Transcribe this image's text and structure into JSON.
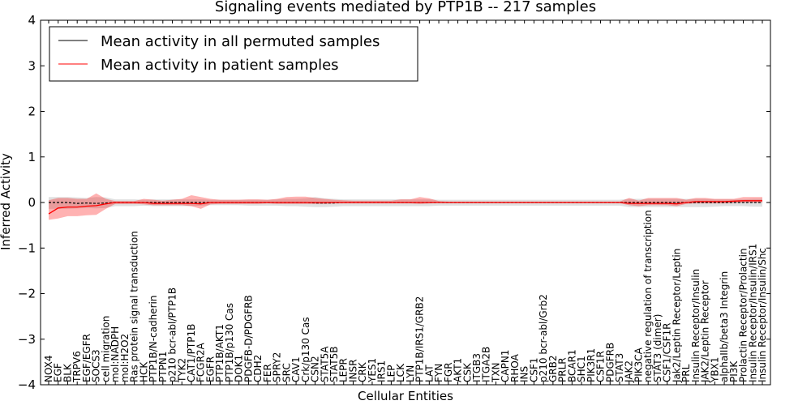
{
  "chart_data": {
    "type": "line",
    "title": "Signaling events mediated by PTP1B -- 217 samples",
    "xlabel": "Cellular Entities",
    "ylabel": "Inferred Activity",
    "ylim": [
      -4,
      4
    ],
    "yticks": [
      -4,
      -3,
      -2,
      -1,
      0,
      1,
      2,
      3,
      4
    ],
    "ytick_labels": [
      "−4",
      "−3",
      "−2",
      "−1",
      "0",
      "1",
      "2",
      "3",
      "4"
    ],
    "legend_position": "top-left",
    "categories": [
      "NOX4",
      "EGF",
      "BLK",
      "TRPV6",
      "EGF/EGFR",
      "SOCS3",
      "cell migration",
      "mol:NADPH",
      "mol:H2O2",
      "Ras protein signal transduction",
      "HCK",
      "PTP1B/N-cadherin",
      "PTPN1",
      "p210 bcr-abl/PTP1B",
      "TYK2",
      "CAT1/PTP1B",
      "FCGR2A",
      "EGFR",
      "PTP1B/AKT1",
      "PTP1B/p130 Cas",
      "DOK1",
      "PDGFB-D/PDGFRB",
      "CDH2",
      "FER",
      "SPRY2",
      "SRC",
      "CAV1",
      "Crk/p130 Cas",
      "CSN2",
      "STAT5A",
      "STAT5B",
      "LEPR",
      "INSR",
      "CRK",
      "YES1",
      "IRS1",
      "LEP",
      "LCK",
      "LYN",
      "PTP1B/IRS1/GRB2",
      "LAT",
      "FYN",
      "FGR",
      "AKT1",
      "CSK",
      "ITGB3",
      "ITGA2B",
      "TXN",
      "CAPN1",
      "RHOA",
      "INS",
      "CSF1",
      "p210 bcr-abl/Grb2",
      "GRB2",
      "PRLR",
      "BCAR1",
      "SHC1",
      "PIK3R1",
      "CSF1R",
      "PDGFRB",
      "STAT3",
      "JAK2",
      "PIK3CA",
      "negative regulation of transcription",
      "STAT3 (dimer)",
      "CSF1/CSF1R",
      "Jak2/Leptin Receptor/Leptin",
      "PRL",
      "Insulin Receptor/Insulin",
      "JAK2/Leptin Receptor",
      "YBX1",
      "alphaIIb/beta3 Integrin",
      "PI3K",
      "Prolactin Receptor/Prolactin",
      "Insulin Receptor/Insulin/IRS1",
      "Insulin Receptor/Insulin/Shc"
    ],
    "series": [
      {
        "name": "Mean activity in all permuted samples",
        "color": "#000000",
        "values": [
          0.0,
          0.0,
          0.0,
          -0.02,
          -0.01,
          -0.02,
          -0.01,
          0.0,
          0.0,
          0.0,
          0.0,
          0.0,
          0.0,
          0.0,
          0.0,
          0.0,
          0.0,
          0.0,
          0.0,
          0.0,
          0.0,
          0.0,
          0.0,
          0.0,
          0.0,
          0.0,
          0.0,
          0.0,
          -0.01,
          -0.01,
          -0.01,
          0.0,
          0.0,
          0.0,
          0.0,
          0.0,
          0.0,
          0.0,
          0.0,
          0.0,
          0.0,
          0.0,
          0.0,
          0.0,
          0.0,
          0.0,
          0.0,
          0.0,
          0.0,
          0.0,
          0.0,
          0.0,
          0.0,
          0.0,
          0.0,
          0.0,
          0.0,
          0.0,
          0.0,
          0.0,
          0.0,
          0.0,
          0.0,
          0.0,
          0.0,
          0.0,
          0.0,
          0.0,
          0.0,
          0.0,
          0.0,
          0.0,
          0.0,
          0.0,
          0.0,
          0.0
        ],
        "band_low": [
          -0.14,
          -0.14,
          -0.14,
          -0.13,
          -0.12,
          -0.13,
          -0.12,
          -0.08,
          -0.08,
          -0.08,
          -0.07,
          -0.08,
          -0.08,
          -0.08,
          -0.08,
          -0.08,
          -0.07,
          -0.06,
          -0.06,
          -0.06,
          -0.06,
          -0.07,
          -0.07,
          -0.07,
          -0.07,
          -0.08,
          -0.08,
          -0.09,
          -0.1,
          -0.1,
          -0.09,
          -0.08,
          -0.08,
          -0.08,
          -0.08,
          -0.08,
          -0.08,
          -0.08,
          -0.08,
          -0.08,
          -0.08,
          -0.07,
          -0.07,
          -0.07,
          -0.07,
          -0.07,
          -0.07,
          -0.07,
          -0.07,
          -0.07,
          -0.07,
          -0.07,
          -0.07,
          -0.07,
          -0.07,
          -0.07,
          -0.07,
          -0.07,
          -0.07,
          -0.07,
          -0.07,
          -0.1,
          -0.1,
          -0.1,
          -0.1,
          -0.1,
          -0.1,
          -0.1,
          -0.1,
          -0.1,
          -0.09,
          -0.08,
          -0.08,
          -0.08,
          -0.09,
          -0.09
        ],
        "band_high": [
          0.12,
          0.12,
          0.12,
          0.11,
          0.1,
          0.12,
          0.11,
          0.07,
          0.07,
          0.07,
          0.06,
          0.07,
          0.07,
          0.07,
          0.07,
          0.07,
          0.07,
          0.06,
          0.06,
          0.06,
          0.06,
          0.06,
          0.06,
          0.06,
          0.07,
          0.08,
          0.08,
          0.09,
          0.12,
          0.09,
          0.08,
          0.07,
          0.07,
          0.07,
          0.07,
          0.07,
          0.07,
          0.07,
          0.07,
          0.07,
          0.07,
          0.06,
          0.06,
          0.06,
          0.06,
          0.06,
          0.06,
          0.06,
          0.06,
          0.06,
          0.06,
          0.06,
          0.06,
          0.06,
          0.06,
          0.06,
          0.06,
          0.06,
          0.06,
          0.06,
          0.06,
          0.08,
          0.08,
          0.08,
          0.08,
          0.08,
          0.08,
          0.08,
          0.08,
          0.08,
          0.07,
          0.07,
          0.07,
          0.07,
          0.08,
          0.08
        ]
      },
      {
        "name": "Mean activity in patient samples",
        "color": "#ff0000",
        "values": [
          -0.25,
          -0.12,
          -0.1,
          -0.1,
          -0.08,
          -0.07,
          -0.03,
          0.0,
          0.0,
          0.0,
          0.0,
          -0.02,
          -0.02,
          -0.02,
          -0.02,
          -0.02,
          -0.03,
          0.0,
          0.0,
          0.0,
          0.0,
          0.0,
          0.0,
          0.0,
          0.0,
          0.0,
          0.0,
          0.0,
          0.0,
          0.0,
          0.0,
          0.0,
          0.0,
          0.0,
          0.0,
          0.0,
          0.0,
          0.0,
          0.0,
          0.0,
          0.0,
          0.0,
          0.0,
          0.0,
          0.0,
          0.0,
          0.0,
          0.0,
          0.0,
          0.0,
          0.0,
          0.0,
          0.0,
          0.0,
          0.0,
          0.0,
          0.0,
          0.0,
          0.0,
          0.0,
          0.0,
          -0.02,
          -0.02,
          -0.02,
          -0.02,
          -0.02,
          -0.03,
          0.0,
          0.02,
          0.02,
          0.02,
          0.02,
          0.03,
          0.04,
          0.04,
          0.04
        ],
        "band_low": [
          -0.38,
          -0.35,
          -0.3,
          -0.3,
          -0.28,
          -0.27,
          -0.14,
          -0.03,
          -0.03,
          -0.03,
          -0.04,
          -0.06,
          -0.06,
          -0.06,
          -0.06,
          -0.08,
          -0.14,
          -0.04,
          -0.03,
          -0.03,
          -0.03,
          -0.03,
          -0.03,
          -0.02,
          -0.03,
          -0.03,
          -0.03,
          -0.03,
          -0.03,
          -0.03,
          -0.02,
          -0.02,
          -0.02,
          -0.02,
          -0.02,
          -0.02,
          -0.02,
          -0.02,
          -0.02,
          -0.03,
          -0.02,
          -0.01,
          -0.01,
          -0.01,
          -0.01,
          -0.01,
          -0.01,
          -0.01,
          -0.01,
          -0.01,
          -0.01,
          -0.01,
          -0.01,
          -0.01,
          -0.01,
          -0.01,
          -0.01,
          -0.01,
          -0.01,
          -0.01,
          -0.01,
          -0.06,
          -0.08,
          -0.06,
          -0.06,
          -0.06,
          -0.08,
          -0.03,
          -0.02,
          -0.02,
          -0.02,
          -0.02,
          -0.01,
          0.0,
          0.0,
          0.0
        ],
        "band_high": [
          0.05,
          0.1,
          0.1,
          0.08,
          0.08,
          0.2,
          0.08,
          0.03,
          0.03,
          0.03,
          0.08,
          0.06,
          0.04,
          0.06,
          0.08,
          0.16,
          0.12,
          0.08,
          0.06,
          0.06,
          0.06,
          0.07,
          0.07,
          0.06,
          0.08,
          0.12,
          0.13,
          0.13,
          0.1,
          0.08,
          0.06,
          0.05,
          0.04,
          0.04,
          0.04,
          0.04,
          0.04,
          0.07,
          0.07,
          0.12,
          0.09,
          0.03,
          0.02,
          0.02,
          0.02,
          0.02,
          0.02,
          0.02,
          0.02,
          0.02,
          0.02,
          0.02,
          0.02,
          0.02,
          0.02,
          0.02,
          0.02,
          0.02,
          0.02,
          0.02,
          0.02,
          0.1,
          0.04,
          0.1,
          0.1,
          0.1,
          0.1,
          0.06,
          0.1,
          0.1,
          0.08,
          0.08,
          0.08,
          0.12,
          0.12,
          0.12
        ]
      }
    ]
  }
}
